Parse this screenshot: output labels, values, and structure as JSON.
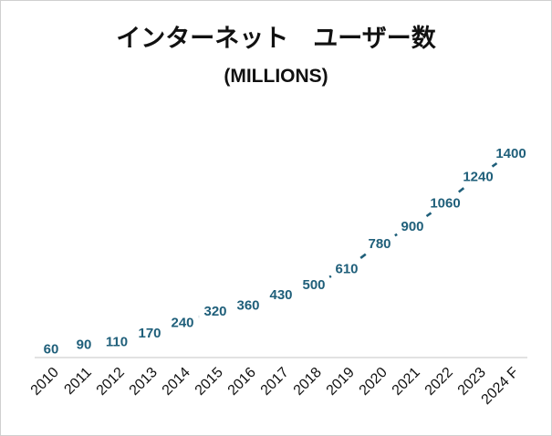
{
  "chart_data": {
    "type": "line",
    "title": "インターネット　ユーザー数",
    "subtitle": "(MILLIONS)",
    "categories": [
      "2010",
      "2011",
      "2012",
      "2013",
      "2014",
      "2015",
      "2016",
      "2017",
      "2018",
      "2019",
      "2020",
      "2021",
      "2022",
      "2023",
      "2024 F"
    ],
    "series": [
      {
        "values": [
          60,
          90,
          110,
          170,
          240,
          320,
          360,
          430,
          500,
          610,
          780,
          900,
          1060,
          1240,
          1400
        ]
      }
    ],
    "ylim": [
      0,
      1500
    ],
    "grid": false,
    "legend": "none",
    "line_style": "dashed",
    "colors": {
      "line": "#1f5f7a",
      "label": "#1f5f7a",
      "axis": "#d9d9d9"
    }
  }
}
